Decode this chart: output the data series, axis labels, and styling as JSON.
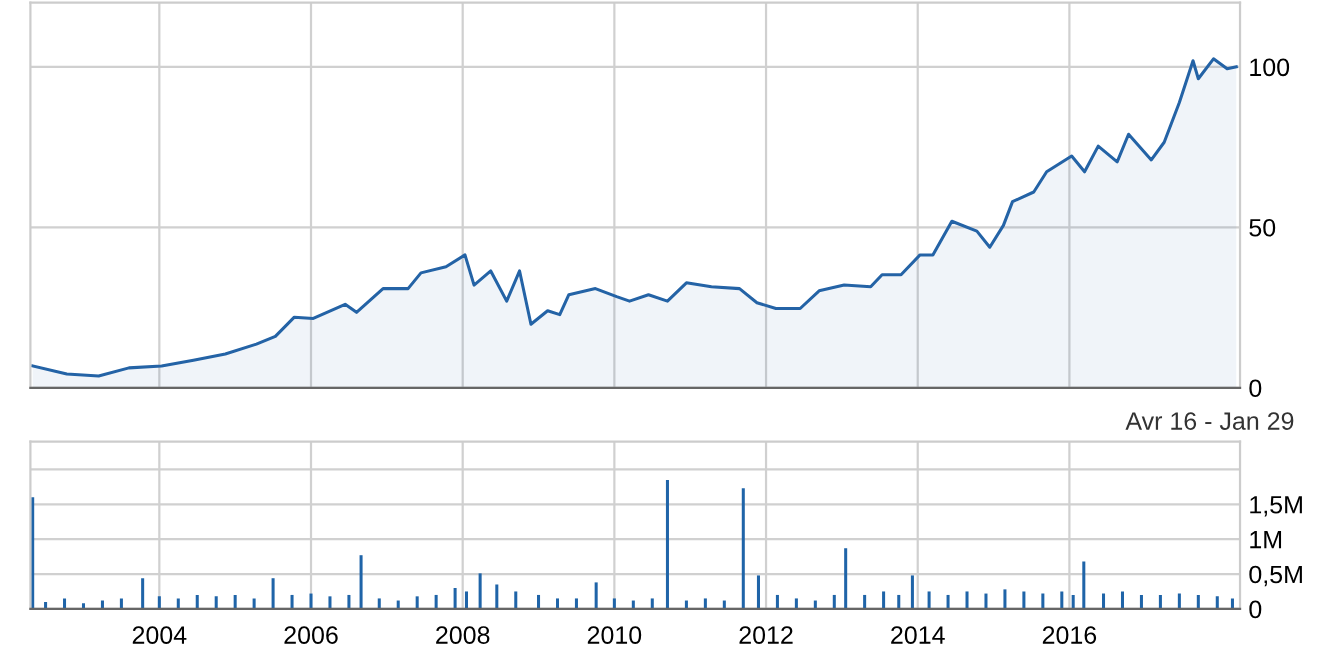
{
  "chart_data": [
    {
      "type": "area",
      "color": "#2463a6",
      "x": [
        2002.33,
        2002.78,
        2003.2,
        2003.6,
        2004.03,
        2004.45,
        2004.87,
        2005.28,
        2005.53,
        2005.78,
        2006.03,
        2006.45,
        2006.6,
        2006.95,
        2007.28,
        2007.45,
        2007.78,
        2008.03,
        2008.15,
        2008.37,
        2008.58,
        2008.75,
        2008.9,
        2009.12,
        2009.28,
        2009.4,
        2009.75,
        2010.03,
        2010.2,
        2010.45,
        2010.7,
        2010.95,
        2011.28,
        2011.65,
        2011.88,
        2012.13,
        2012.45,
        2012.7,
        2013.03,
        2013.38,
        2013.53,
        2013.78,
        2014.03,
        2014.2,
        2014.45,
        2014.78,
        2014.95,
        2015.13,
        2015.25,
        2015.53,
        2015.7,
        2016.03,
        2016.2,
        2016.38,
        2016.63,
        2016.78,
        2017.08,
        2017.25,
        2017.45,
        2017.63,
        2017.7,
        2017.9,
        2018.08,
        2018.2
      ],
      "values": [
        6.8,
        4.3,
        3.7,
        6.2,
        6.8,
        8.6,
        10.5,
        13.6,
        16,
        22,
        21.6,
        26,
        23.5,
        30.9,
        30.9,
        35.8,
        37.7,
        41.4,
        32,
        36.4,
        27,
        36.4,
        19.8,
        24,
        22.8,
        29,
        30.9,
        28.4,
        27,
        29,
        27,
        32.7,
        31.5,
        30.9,
        26.5,
        24.7,
        24.7,
        30.2,
        32,
        31.5,
        35.2,
        35.2,
        41.4,
        41.4,
        51.9,
        48.8,
        43.8,
        50.6,
        58,
        61,
        67.3,
        72.2,
        67.3,
        75.3,
        70.4,
        79,
        71,
        76.5,
        88.9,
        101.9,
        96.3,
        102.5,
        99.4,
        100
      ],
      "xlim": [
        2002.3,
        2018.25
      ],
      "xticks": [
        2004,
        2006,
        2008,
        2010,
        2012,
        2014,
        2016
      ],
      "ylim": [
        0,
        120
      ],
      "yticks": [
        0,
        50,
        100
      ],
      "grid": true,
      "tick_labels": "y"
    },
    {
      "type": "bar",
      "color": "#1f64a8",
      "x": [
        2002.33,
        2002.5,
        2002.75,
        2003.0,
        2003.25,
        2003.5,
        2003.78,
        2004.0,
        2004.25,
        2004.5,
        2004.75,
        2005.0,
        2005.25,
        2005.5,
        2005.75,
        2006.0,
        2006.25,
        2006.5,
        2006.66,
        2006.9,
        2007.15,
        2007.4,
        2007.65,
        2007.9,
        2008.05,
        2008.23,
        2008.45,
        2008.7,
        2009.0,
        2009.25,
        2009.5,
        2009.76,
        2010.0,
        2010.25,
        2010.5,
        2010.7,
        2010.95,
        2011.2,
        2011.45,
        2011.7,
        2011.9,
        2012.15,
        2012.4,
        2012.65,
        2012.9,
        2013.05,
        2013.3,
        2013.55,
        2013.75,
        2013.93,
        2014.15,
        2014.4,
        2014.65,
        2014.9,
        2015.15,
        2015.4,
        2015.65,
        2015.9,
        2016.05,
        2016.19,
        2016.45,
        2016.7,
        2016.95,
        2017.2,
        2017.45,
        2017.7,
        2017.95,
        2018.15
      ],
      "values": [
        1.6,
        0.1,
        0.15,
        0.08,
        0.12,
        0.15,
        0.44,
        0.18,
        0.15,
        0.2,
        0.18,
        0.2,
        0.15,
        0.44,
        0.2,
        0.22,
        0.18,
        0.2,
        0.77,
        0.15,
        0.12,
        0.18,
        0.2,
        0.3,
        0.25,
        0.51,
        0.35,
        0.25,
        0.2,
        0.15,
        0.15,
        0.38,
        0.15,
        0.12,
        0.15,
        1.85,
        0.12,
        0.15,
        0.12,
        1.73,
        0.48,
        0.2,
        0.15,
        0.12,
        0.2,
        0.87,
        0.2,
        0.25,
        0.2,
        0.48,
        0.25,
        0.2,
        0.25,
        0.22,
        0.28,
        0.25,
        0.22,
        0.25,
        0.2,
        0.68,
        0.22,
        0.25,
        0.2,
        0.2,
        0.22,
        0.2,
        0.18,
        0.15
      ],
      "xlim": [
        2002.3,
        2018.25
      ],
      "xticks": [
        2004,
        2006,
        2008,
        2010,
        2012,
        2014,
        2016
      ],
      "ylim": [
        0,
        2.4
      ],
      "yticks": [
        {
          "value": 0,
          "label": "0"
        },
        {
          "value": 0.5,
          "label": "0,5M"
        },
        {
          "value": 1,
          "label": "1M"
        },
        {
          "value": 1.5,
          "label": "1,5M"
        },
        {
          "value": 2,
          "label": null
        }
      ],
      "grid": true,
      "annotations": [
        "Avr 16 - Jan 29"
      ]
    }
  ]
}
